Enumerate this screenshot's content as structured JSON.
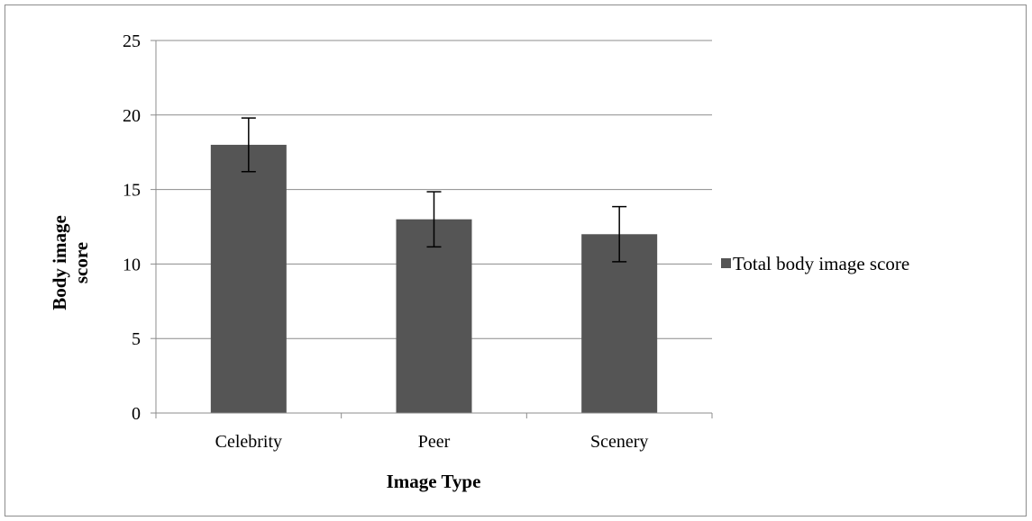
{
  "chart_data": {
    "type": "bar",
    "categories": [
      "Celebrity",
      "Peer",
      "Scenery"
    ],
    "series": [
      {
        "name": "Total body image score",
        "values": [
          18,
          13,
          12
        ],
        "error_plus": [
          1.8,
          1.85,
          1.85
        ],
        "error_minus": [
          1.8,
          1.85,
          1.85
        ],
        "color": "#555555"
      }
    ],
    "xlabel": "Image Type",
    "ylabel_lines": [
      "Body image",
      "score"
    ],
    "ylim": [
      0,
      25
    ],
    "yticks": [
      0,
      5,
      10,
      15,
      20,
      25
    ],
    "grid": true,
    "legend": "right"
  }
}
